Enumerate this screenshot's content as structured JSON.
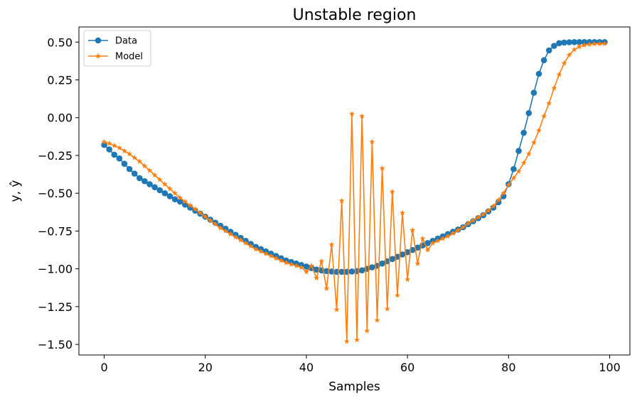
{
  "chart_data": {
    "type": "line",
    "title": "Unstable region",
    "xlabel": "Samples",
    "ylabel": "y, ŷ",
    "xlim": [
      -5,
      104
    ],
    "ylim": [
      -1.57,
      0.6
    ],
    "x_ticks": [
      0,
      20,
      40,
      60,
      80,
      100
    ],
    "x_tick_labels": [
      "0",
      "20",
      "40",
      "60",
      "80",
      "100"
    ],
    "y_ticks": [
      0.5,
      0.25,
      0.0,
      -0.25,
      -0.5,
      -0.75,
      -1.0,
      -1.25,
      -1.5
    ],
    "y_tick_labels": [
      "0.50",
      "0.25",
      "0.00",
      "−0.25",
      "−0.50",
      "−0.75",
      "−1.00",
      "−1.25",
      "−1.50"
    ],
    "grid": false,
    "legend_position": "top-left",
    "series": [
      {
        "name": "Data",
        "color": "#1f77b4",
        "marker": "circle",
        "x_start": 0,
        "values": [
          -0.18,
          -0.21,
          -0.245,
          -0.27,
          -0.305,
          -0.34,
          -0.37,
          -0.4,
          -0.42,
          -0.44,
          -0.46,
          -0.48,
          -0.5,
          -0.52,
          -0.54,
          -0.555,
          -0.575,
          -0.595,
          -0.615,
          -0.635,
          -0.655,
          -0.675,
          -0.695,
          -0.715,
          -0.735,
          -0.755,
          -0.775,
          -0.795,
          -0.815,
          -0.835,
          -0.855,
          -0.87,
          -0.885,
          -0.9,
          -0.915,
          -0.93,
          -0.945,
          -0.955,
          -0.965,
          -0.975,
          -0.985,
          -0.995,
          -1.005,
          -1.01,
          -1.015,
          -1.018,
          -1.02,
          -1.02,
          -1.02,
          -1.018,
          -1.015,
          -1.01,
          -1.0,
          -0.99,
          -0.98,
          -0.965,
          -0.95,
          -0.935,
          -0.92,
          -0.905,
          -0.89,
          -0.875,
          -0.86,
          -0.845,
          -0.83,
          -0.815,
          -0.8,
          -0.785,
          -0.77,
          -0.755,
          -0.74,
          -0.725,
          -0.705,
          -0.685,
          -0.665,
          -0.645,
          -0.62,
          -0.595,
          -0.56,
          -0.52,
          -0.44,
          -0.34,
          -0.22,
          -0.1,
          0.03,
          0.165,
          0.29,
          0.38,
          0.445,
          0.475,
          0.493,
          0.497,
          0.499,
          0.5,
          0.5,
          0.5,
          0.5,
          0.5,
          0.5,
          0.5
        ]
      },
      {
        "name": "Model",
        "color": "#ff7f0e",
        "marker": "star",
        "x_start": 0,
        "values": [
          -0.16,
          -0.17,
          -0.185,
          -0.2,
          -0.22,
          -0.24,
          -0.265,
          -0.29,
          -0.32,
          -0.35,
          -0.38,
          -0.41,
          -0.44,
          -0.47,
          -0.5,
          -0.53,
          -0.555,
          -0.58,
          -0.605,
          -0.63,
          -0.655,
          -0.68,
          -0.705,
          -0.73,
          -0.75,
          -0.77,
          -0.79,
          -0.81,
          -0.83,
          -0.85,
          -0.87,
          -0.885,
          -0.9,
          -0.915,
          -0.93,
          -0.945,
          -0.96,
          -0.97,
          -0.98,
          -0.99,
          -1.02,
          -0.98,
          -1.06,
          -0.95,
          -1.13,
          -0.84,
          -1.27,
          -0.55,
          -1.48,
          0.025,
          -1.47,
          0.01,
          -1.41,
          -0.16,
          -1.34,
          -0.335,
          -1.265,
          -0.49,
          -1.175,
          -0.63,
          -1.07,
          -0.745,
          -0.965,
          -0.8,
          -0.875,
          -0.83,
          -0.815,
          -0.8,
          -0.785,
          -0.765,
          -0.745,
          -0.725,
          -0.7,
          -0.68,
          -0.66,
          -0.64,
          -0.615,
          -0.585,
          -0.545,
          -0.5,
          -0.445,
          -0.4,
          -0.355,
          -0.3,
          -0.24,
          -0.165,
          -0.085,
          0.01,
          0.095,
          0.195,
          0.285,
          0.36,
          0.415,
          0.45,
          0.47,
          0.48,
          0.485,
          0.488,
          0.489,
          0.49
        ]
      }
    ]
  }
}
